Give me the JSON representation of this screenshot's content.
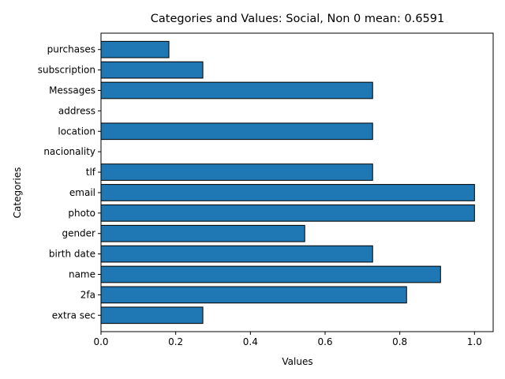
{
  "chart_data": {
    "type": "bar",
    "orientation": "horizontal",
    "title": "Categories and Values: Social, Non 0 mean: 0.6591",
    "xlabel": "Values",
    "ylabel": "Categories",
    "xlim": [
      0.0,
      1.05
    ],
    "xticks": [
      0.0,
      0.2,
      0.4,
      0.6,
      0.8,
      1.0
    ],
    "xtick_labels": [
      "0.0",
      "0.2",
      "0.4",
      "0.6",
      "0.8",
      "1.0"
    ],
    "categories": [
      "extra sec",
      "2fa",
      "name",
      "birth date",
      "gender",
      "photo",
      "email",
      "tlf",
      "nacionality",
      "location",
      "address",
      "Messages",
      "subscription",
      "purchases"
    ],
    "values": [
      0.2727,
      0.8182,
      0.9091,
      0.7273,
      0.5455,
      1.0,
      1.0,
      0.7273,
      0.0,
      0.7273,
      0.0,
      0.7273,
      0.2727,
      0.1818
    ],
    "bar_color": "#1f77b4",
    "bar_edge_color": "#000000",
    "grid": false,
    "legend": "none"
  }
}
